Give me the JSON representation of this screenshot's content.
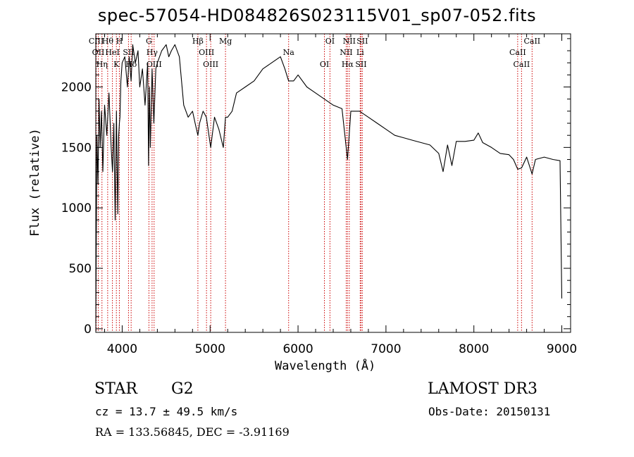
{
  "chart_data": {
    "type": "line",
    "title": "spec-57054-HD084826S023115V01_sp07-052.fits",
    "xlabel": "Wavelength (Å)",
    "ylabel": "Flux (relative)",
    "xlim": [
      3700,
      9100
    ],
    "ylim": [
      -30,
      2440
    ],
    "xticks": [
      4000,
      5000,
      6000,
      7000,
      8000,
      9000
    ],
    "yticks": [
      0,
      500,
      1000,
      1500,
      2000
    ],
    "grid": false,
    "line_color": "#000000",
    "marker_color": "#cc0000",
    "series": [
      {
        "x": [
          3700,
          3712,
          3725,
          3737,
          3750,
          3765,
          3780,
          3800,
          3825,
          3850,
          3875,
          3890,
          3905,
          3920,
          3935,
          3950,
          3960,
          3968,
          3975,
          3985,
          4000,
          4030,
          4060,
          4080,
          4101,
          4120,
          4150,
          4180,
          4200,
          4230,
          4260,
          4290,
          4300,
          4310,
          4320,
          4340,
          4360,
          4383,
          4400,
          4450,
          4500,
          4530,
          4560,
          4600,
          4650,
          4700,
          4750,
          4800,
          4830,
          4861,
          4880,
          4920,
          4957,
          5007,
          5050,
          5100,
          5150,
          5175,
          5200,
          5250,
          5300,
          5400,
          5500,
          5600,
          5700,
          5800,
          5850,
          5893,
          5950,
          6000,
          6100,
          6200,
          6300,
          6400,
          6500,
          6563,
          6600,
          6700,
          6800,
          6900,
          7000,
          7100,
          7200,
          7300,
          7400,
          7500,
          7600,
          7650,
          7700,
          7750,
          7800,
          7900,
          8000,
          8050,
          8100,
          8200,
          8300,
          8400,
          8450,
          8498,
          8542,
          8600,
          8662,
          8700,
          8800,
          8900,
          8980,
          9000
        ],
        "y": [
          50,
          1600,
          1200,
          1900,
          1500,
          1800,
          1300,
          1850,
          1600,
          1950,
          1500,
          1300,
          1700,
          900,
          1800,
          950,
          1600,
          1700,
          1750,
          2050,
          2200,
          2250,
          2000,
          2250,
          2050,
          2350,
          2200,
          2300,
          2000,
          2150,
          1850,
          2200,
          1350,
          2000,
          1500,
          2150,
          1700,
          2150,
          2200,
          2300,
          2350,
          2250,
          2300,
          2350,
          2250,
          1850,
          1750,
          1800,
          1700,
          1600,
          1700,
          1800,
          1750,
          1500,
          1750,
          1650,
          1500,
          1750,
          1750,
          1800,
          1950,
          2000,
          2050,
          2150,
          2200,
          2250,
          2150,
          2050,
          2050,
          2100,
          2000,
          1950,
          1900,
          1850,
          1820,
          1400,
          1800,
          1800,
          1750,
          1700,
          1650,
          1600,
          1580,
          1560,
          1540,
          1520,
          1450,
          1300,
          1520,
          1350,
          1550,
          1550,
          1560,
          1620,
          1540,
          1500,
          1450,
          1440,
          1400,
          1320,
          1330,
          1420,
          1280,
          1400,
          1420,
          1400,
          1390,
          250
        ]
      }
    ],
    "markers": [
      {
        "x": 3705,
        "label": "CIII"
      },
      {
        "x": 3728,
        "label": "OII"
      },
      {
        "x": 3770,
        "label": "Hη"
      },
      {
        "x": 3835,
        "label": "Hθ"
      },
      {
        "x": 3889,
        "label": "HeI"
      },
      {
        "x": 3934,
        "label": "K"
      },
      {
        "x": 3968,
        "label": "H"
      },
      {
        "x": 4072,
        "label": "SII"
      },
      {
        "x": 4102,
        "label": "Hδ"
      },
      {
        "x": 4304,
        "label": "G"
      },
      {
        "x": 4340,
        "label": "Hγ"
      },
      {
        "x": 4363,
        "label": "OIII"
      },
      {
        "x": 4861,
        "label": "Hβ"
      },
      {
        "x": 4959,
        "label": "OIII"
      },
      {
        "x": 5007,
        "label": "OIII"
      },
      {
        "x": 5175,
        "label": "Mg"
      },
      {
        "x": 5893,
        "label": "Na"
      },
      {
        "x": 6300,
        "label": "OI"
      },
      {
        "x": 6363,
        "label": "OI"
      },
      {
        "x": 6548,
        "label": "NII"
      },
      {
        "x": 6563,
        "label": "Hα"
      },
      {
        "x": 6583,
        "label": "NII"
      },
      {
        "x": 6707,
        "label": "Li"
      },
      {
        "x": 6716,
        "label": "SII"
      },
      {
        "x": 6731,
        "label": "SII"
      },
      {
        "x": 8498,
        "label": "CaII"
      },
      {
        "x": 8542,
        "label": "CaII"
      },
      {
        "x": 8662,
        "label": "CaII"
      }
    ]
  },
  "info": {
    "object_class": "STAR",
    "subclass": "G2",
    "survey": "LAMOST DR3",
    "redshift": "cz = 13.7 ± 49.5 km/s",
    "obs_date": "Obs-Date: 20150131",
    "coords": "RA = 133.56845, DEC =  -3.91169"
  }
}
